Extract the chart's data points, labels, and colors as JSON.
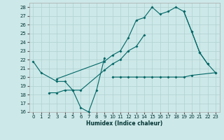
{
  "bg_color": "#cde8e8",
  "grid_color": "#b0d0d0",
  "line_color": "#006666",
  "xlabel": "Humidex (Indice chaleur)",
  "xlim": [
    -0.5,
    23.5
  ],
  "ylim": [
    16,
    28.5
  ],
  "yticks": [
    16,
    17,
    18,
    19,
    20,
    21,
    22,
    23,
    24,
    25,
    26,
    27,
    28
  ],
  "xticks": [
    0,
    1,
    2,
    3,
    4,
    5,
    6,
    7,
    8,
    9,
    10,
    11,
    12,
    13,
    14,
    15,
    16,
    17,
    18,
    19,
    20,
    21,
    22,
    23
  ],
  "series": [
    {
      "x": [
        3,
        9,
        10,
        11,
        12,
        13,
        14,
        15,
        16,
        17,
        18,
        19,
        20,
        21,
        22
      ],
      "y": [
        19.8,
        21.8,
        22.5,
        23.0,
        24.5,
        26.5,
        26.8,
        28.0,
        27.2,
        27.5,
        28.0,
        27.5,
        25.2,
        22.8,
        21.5
      ]
    },
    {
      "x": [
        2,
        3,
        4,
        5,
        6,
        7,
        8,
        9
      ],
      "y": [
        18.2,
        18.2,
        18.5,
        18.5,
        16.5,
        16.0,
        18.5,
        22.2
      ]
    },
    {
      "x": [
        10,
        11,
        12,
        13,
        14,
        15,
        16,
        17,
        18,
        19,
        20,
        23
      ],
      "y": [
        20.0,
        20.0,
        20.0,
        20.0,
        20.0,
        20.0,
        20.0,
        20.0,
        20.0,
        20.0,
        20.2,
        20.5
      ]
    },
    {
      "x": [
        0,
        1,
        3,
        4,
        5,
        6,
        9,
        10,
        11,
        12,
        13,
        14
      ],
      "y": [
        21.8,
        20.5,
        19.5,
        19.5,
        18.5,
        18.5,
        20.8,
        21.5,
        22.0,
        23.0,
        23.5,
        24.8
      ]
    },
    {
      "x": [
        19,
        20,
        21,
        22,
        23
      ],
      "y": [
        27.5,
        25.2,
        22.8,
        21.5,
        20.5
      ]
    }
  ]
}
